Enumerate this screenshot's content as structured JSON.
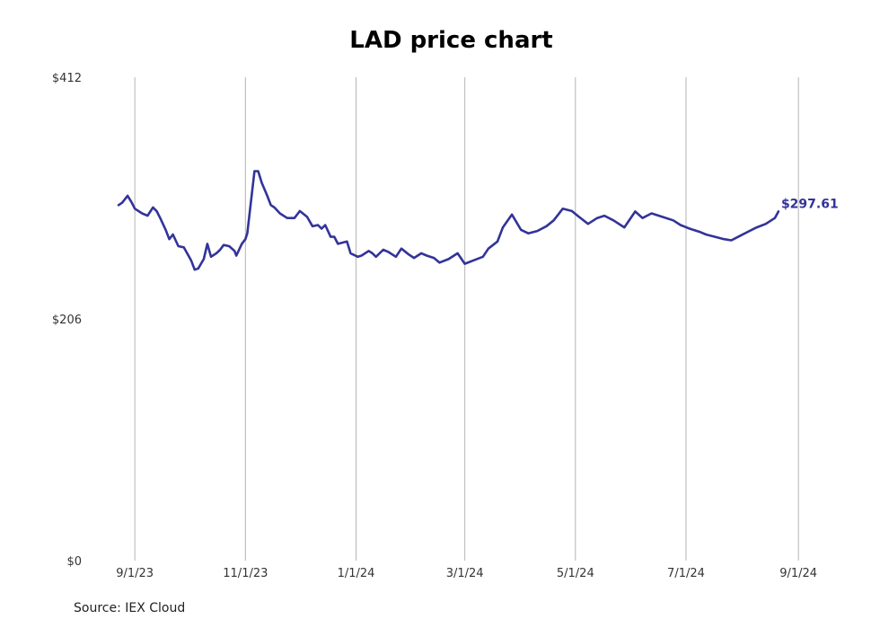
{
  "chart_data": {
    "type": "line",
    "title": "LAD price chart",
    "source": "Source: IEX Cloud",
    "y_tick_labels": [
      "$412",
      "$206",
      "$0"
    ],
    "y_ticks": [
      412,
      206,
      0
    ],
    "ylim": [
      0,
      412
    ],
    "x_tick_labels": [
      "9/1/23",
      "11/1/23",
      "1/1/24",
      "3/1/24",
      "5/1/24",
      "7/1/24",
      "9/1/24"
    ],
    "x_ticks": [
      "2023-09-01",
      "2023-11-01",
      "2024-01-01",
      "2024-03-01",
      "2024-05-01",
      "2024-07-01",
      "2024-09-01"
    ],
    "xlim": [
      "2023-08-23",
      "2024-08-24"
    ],
    "grid": "vertical lines at x ticks",
    "line_color": "#333399",
    "last_value_label": "$297.61",
    "series": [
      {
        "x": [
          "2023-08-23",
          "2023-08-25",
          "2023-08-28",
          "2023-08-30",
          "2023-09-01",
          "2023-09-05",
          "2023-09-08",
          "2023-09-11",
          "2023-09-13",
          "2023-09-15",
          "2023-09-18",
          "2023-09-20",
          "2023-09-22",
          "2023-09-25",
          "2023-09-28",
          "2023-10-02",
          "2023-10-04",
          "2023-10-06",
          "2023-10-09",
          "2023-10-11",
          "2023-10-13",
          "2023-10-16",
          "2023-10-18",
          "2023-10-20",
          "2023-10-23",
          "2023-10-26",
          "2023-10-27",
          "2023-10-30",
          "2023-11-01",
          "2023-11-02",
          "2023-11-06",
          "2023-11-08",
          "2023-11-10",
          "2023-11-13",
          "2023-11-15",
          "2023-11-17",
          "2023-11-20",
          "2023-11-24",
          "2023-11-28",
          "2023-11-30",
          "2023-12-01",
          "2023-12-05",
          "2023-12-08",
          "2023-12-11",
          "2023-12-13",
          "2023-12-15",
          "2023-12-18",
          "2023-12-20",
          "2023-12-22",
          "2023-12-27",
          "2023-12-29",
          "2024-01-02",
          "2024-01-04",
          "2024-01-08",
          "2024-01-10",
          "2024-01-12",
          "2024-01-16",
          "2024-01-19",
          "2024-01-23",
          "2024-01-26",
          "2024-01-30",
          "2024-02-02",
          "2024-02-06",
          "2024-02-09",
          "2024-02-13",
          "2024-02-16",
          "2024-02-21",
          "2024-02-26",
          "2024-03-01",
          "2024-03-06",
          "2024-03-11",
          "2024-03-14",
          "2024-03-19",
          "2024-03-22",
          "2024-03-27",
          "2024-04-01",
          "2024-04-05",
          "2024-04-10",
          "2024-04-15",
          "2024-04-19",
          "2024-04-24",
          "2024-04-29",
          "2024-05-03",
          "2024-05-08",
          "2024-05-13",
          "2024-05-17",
          "2024-05-22",
          "2024-05-28",
          "2024-06-03",
          "2024-06-07",
          "2024-06-12",
          "2024-06-18",
          "2024-06-24",
          "2024-06-28",
          "2024-07-03",
          "2024-07-09",
          "2024-07-12",
          "2024-07-17",
          "2024-07-22",
          "2024-07-26",
          "2024-07-31",
          "2024-08-05",
          "2024-08-09",
          "2024-08-14",
          "2024-08-19",
          "2024-08-21"
        ],
        "values": [
          303,
          305,
          311,
          306,
          300,
          296,
          294,
          301,
          298,
          292,
          282,
          274,
          278,
          268,
          267,
          256,
          248,
          249,
          257,
          270,
          259,
          262,
          265,
          269,
          268,
          264,
          260,
          270,
          274,
          279,
          332,
          332,
          322,
          311,
          303,
          301,
          296,
          292,
          292,
          296,
          298,
          293,
          285,
          286,
          283,
          286,
          276,
          276,
          270,
          272,
          262,
          259,
          260,
          264,
          262,
          259,
          265,
          263,
          259,
          266,
          261,
          258,
          262,
          260,
          258,
          254,
          257,
          262,
          253,
          256,
          259,
          266,
          272,
          284,
          295,
          282,
          279,
          281,
          285,
          290,
          300,
          298,
          293,
          287,
          292,
          294,
          290,
          284,
          297.61,
          292,
          296,
          293,
          290,
          286,
          283,
          280,
          278,
          276,
          274,
          273,
          277,
          281,
          284,
          287,
          292,
          297.61
        ]
      }
    ]
  }
}
